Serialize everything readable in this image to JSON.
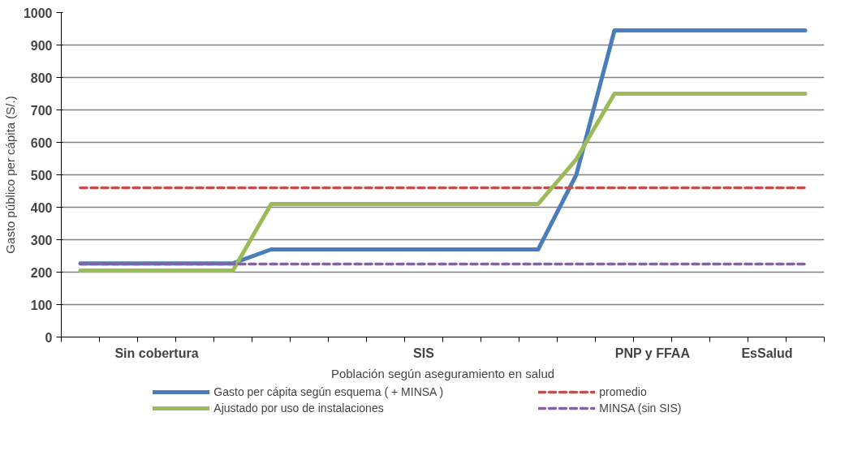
{
  "chart_data": {
    "type": "line",
    "xlabel": "Población según aseguramiento en salud",
    "ylabel": "Gasto público per cápita (S/.)",
    "categories": [
      null,
      null,
      "Sin cobertura",
      null,
      null,
      null,
      null,
      null,
      null,
      "SIS",
      null,
      null,
      null,
      null,
      null,
      "PNP y FFAA",
      null,
      null,
      "EsSalud",
      null
    ],
    "ylim": [
      0,
      1000
    ],
    "yticks": [
      0,
      100,
      200,
      300,
      400,
      500,
      600,
      700,
      800,
      900,
      1000
    ],
    "grid": "y",
    "legend": "bottom",
    "marker": "none",
    "series": [
      {
        "name": "Gasto per cápita según esquema ( + MINSA )",
        "color": "#4a7ebb",
        "line_style": "solid",
        "values": [
          227,
          227,
          227,
          227,
          227,
          270,
          270,
          270,
          270,
          270,
          270,
          270,
          270,
          500,
          945,
          945,
          945,
          945,
          945,
          945
        ]
      },
      {
        "name": "promedio",
        "color": "#c0504d",
        "line_style": "dashed",
        "values": [
          460,
          460,
          460,
          460,
          460,
          460,
          460,
          460,
          460,
          460,
          460,
          460,
          460,
          460,
          460,
          460,
          460,
          460,
          460,
          460
        ]
      },
      {
        "name": "Ajustado por uso de instalaciones",
        "color": "#9bbb59",
        "line_style": "solid",
        "values": [
          205,
          205,
          205,
          205,
          205,
          410,
          410,
          410,
          410,
          410,
          410,
          410,
          410,
          548,
          750,
          750,
          750,
          750,
          750,
          750
        ]
      },
      {
        "name": "MINSA (sin SIS)",
        "color": "#8064a2",
        "line_style": "dashed",
        "values": [
          225,
          225,
          225,
          225,
          225,
          225,
          225,
          225,
          225,
          225,
          225,
          225,
          225,
          225,
          225,
          225,
          225,
          225,
          225,
          225
        ]
      }
    ]
  }
}
